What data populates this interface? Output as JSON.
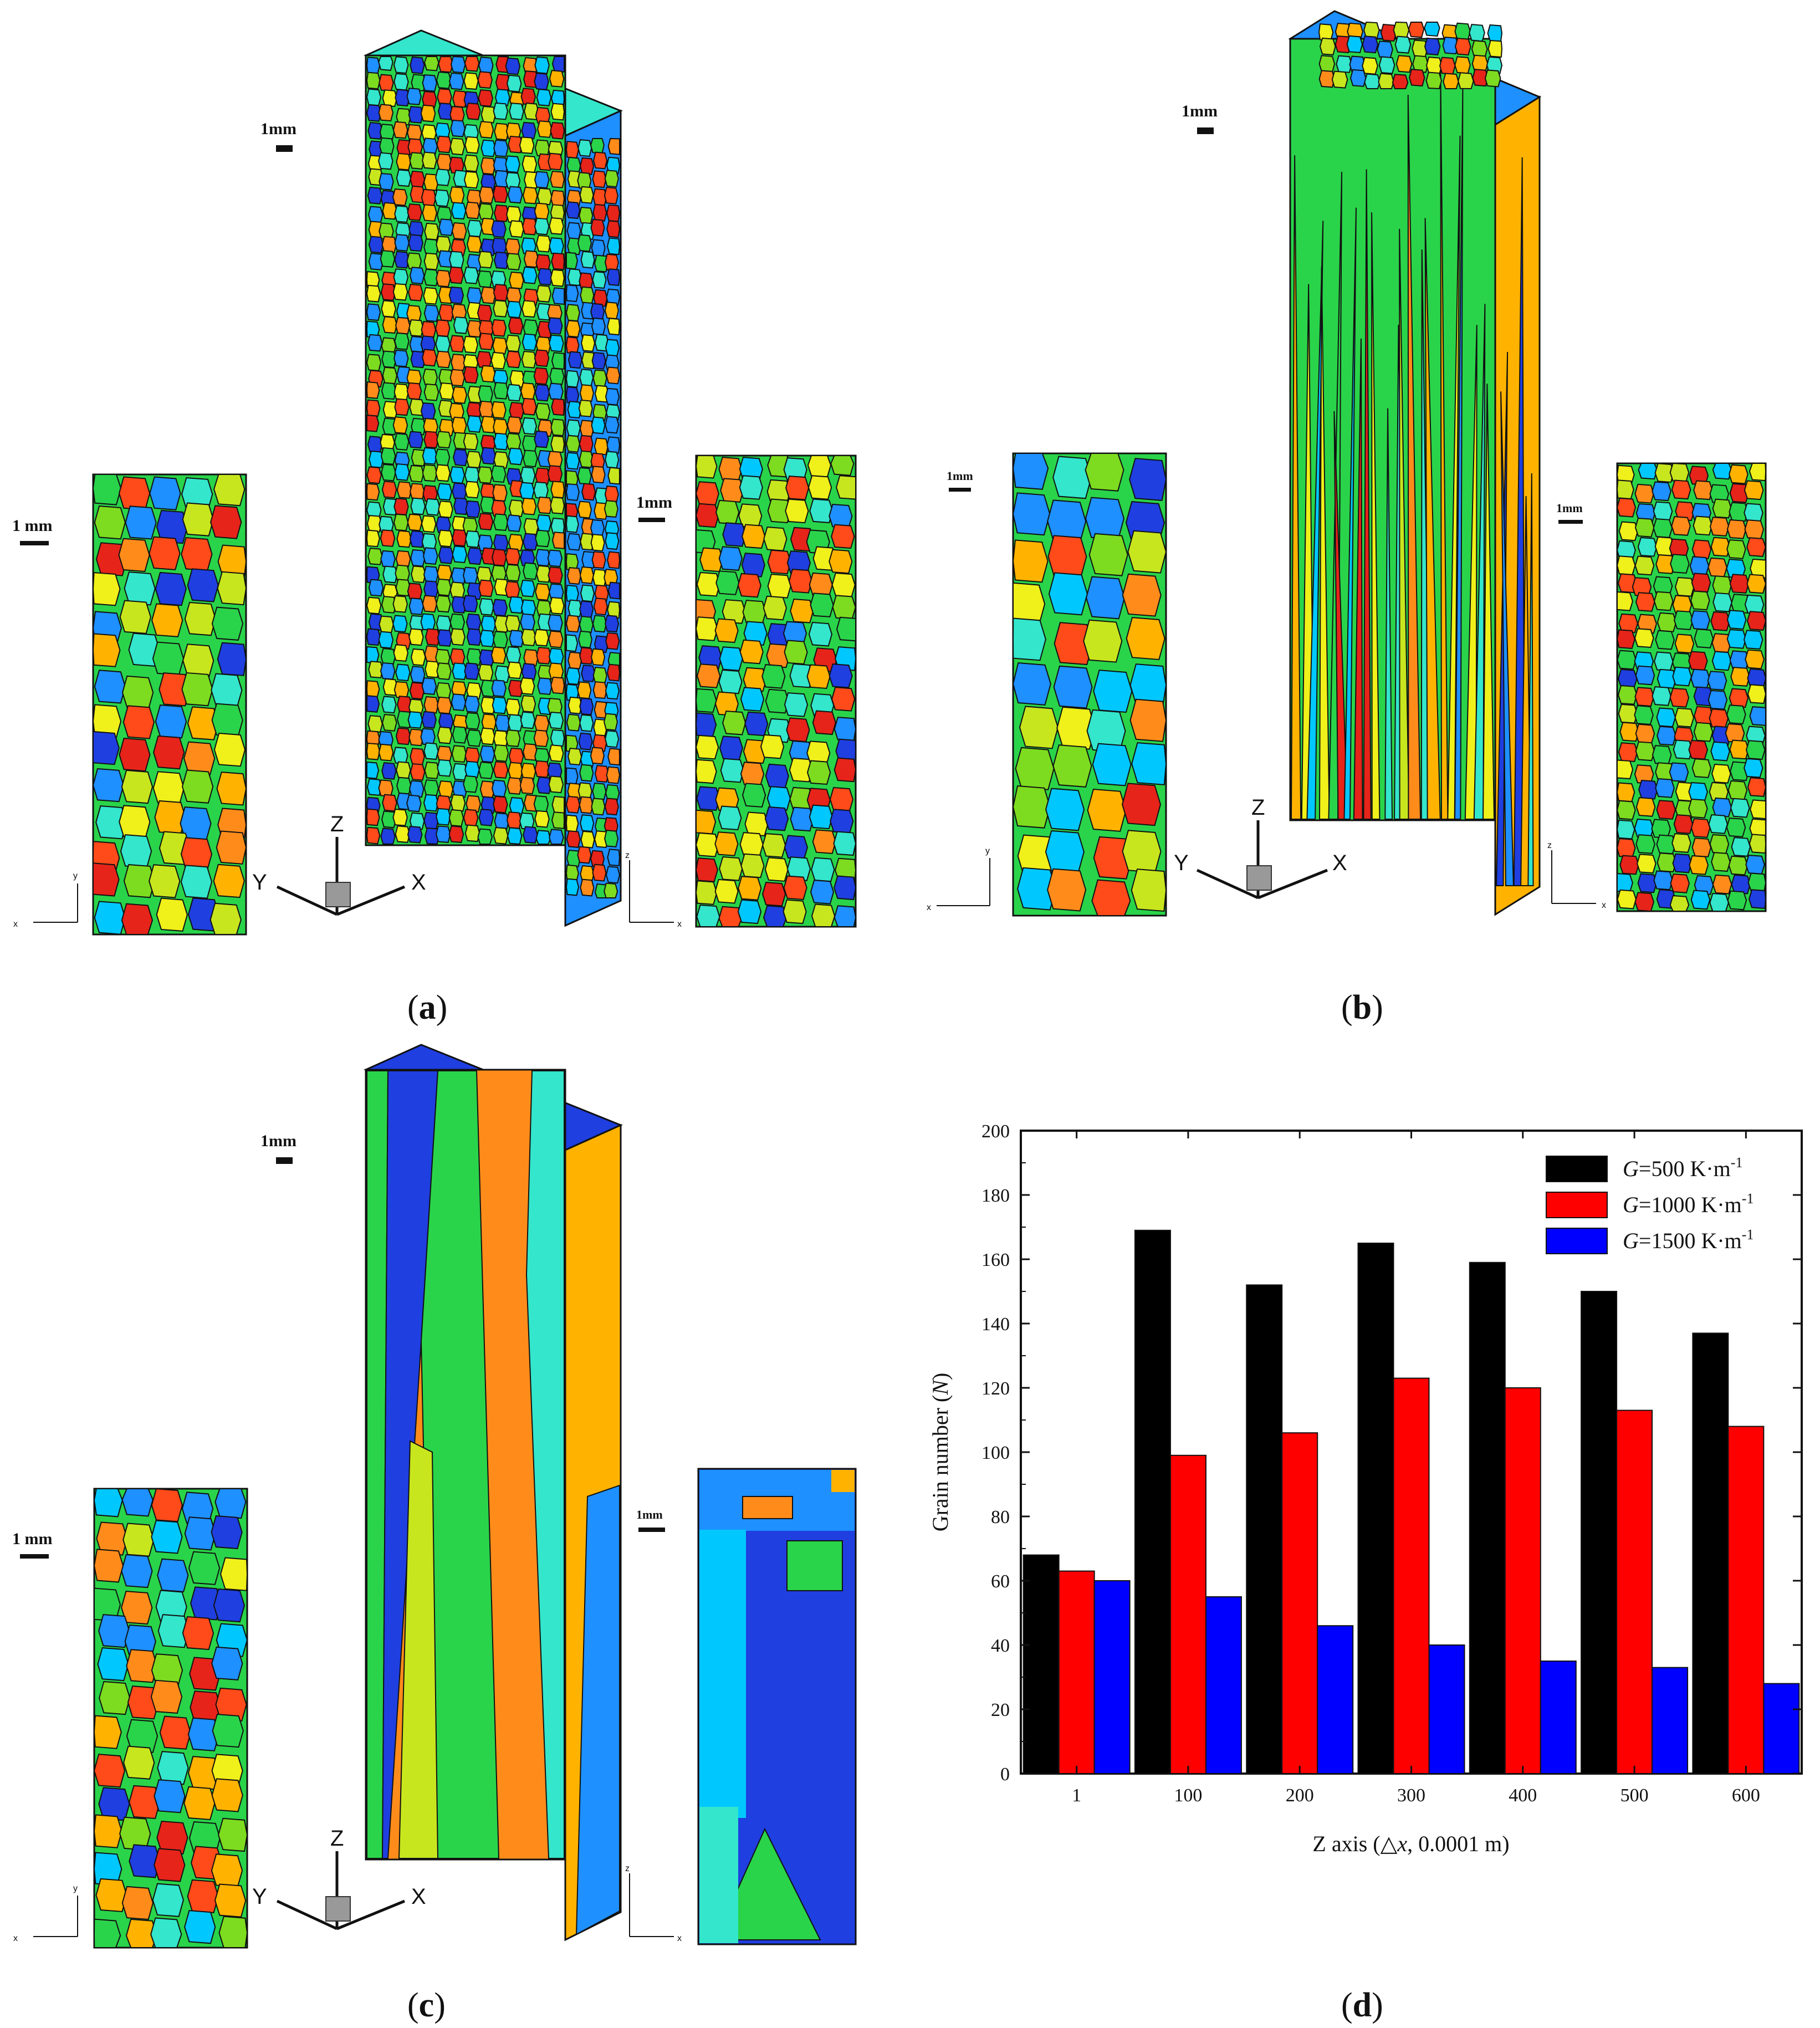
{
  "figure": {
    "panel_labels": [
      "a",
      "b",
      "c",
      "d"
    ],
    "scale_bars": {
      "main": "1mm",
      "left_slice": "1 mm",
      "right_slice": "1mm"
    },
    "axis_letters": {
      "x": "X",
      "y": "Y",
      "z": "Z",
      "x_small": "x",
      "y_small": "y",
      "z_small": "z"
    }
  },
  "grain_palette": [
    "#1f3fe0",
    "#1e90ff",
    "#00c8ff",
    "#33e6cc",
    "#2ad44a",
    "#7ddc1f",
    "#c8e61e",
    "#f0f01a",
    "#ffb300",
    "#ff8c1a",
    "#ff4a1a",
    "#e6241a"
  ],
  "chart_data": {
    "type": "bar",
    "categories": [
      "1",
      "100",
      "200",
      "300",
      "400",
      "500",
      "600"
    ],
    "series": [
      {
        "name": "G=500 K·m⁻¹",
        "symbol": "G",
        "text": "=500 K·m",
        "exp": "-1",
        "color": "#000000",
        "values": [
          68,
          169,
          152,
          165,
          159,
          150,
          137
        ]
      },
      {
        "name": "G=1000 K·m⁻¹",
        "symbol": "G",
        "text": "=1000 K·m",
        "exp": "-1",
        "color": "#ff0000",
        "values": [
          63,
          99,
          106,
          123,
          120,
          113,
          108
        ]
      },
      {
        "name": "G=1500 K·m⁻¹",
        "symbol": "G",
        "text": "=1500 K·m",
        "exp": "-1",
        "color": "#0000ff",
        "values": [
          60,
          55,
          46,
          40,
          35,
          33,
          28
        ]
      }
    ],
    "ylim": [
      0,
      200
    ],
    "yticks": [
      "0",
      "20",
      "40",
      "60",
      "80",
      "100",
      "120",
      "140",
      "160",
      "180",
      "200"
    ],
    "ylabel": {
      "text": "Grain number (",
      "symbol": "N",
      "tail": ")"
    },
    "xlabel": {
      "text": "Z axis (△",
      "symbol": "x",
      "tail": ",  0.0001 m)"
    },
    "legend": "top-right",
    "grid": false
  }
}
